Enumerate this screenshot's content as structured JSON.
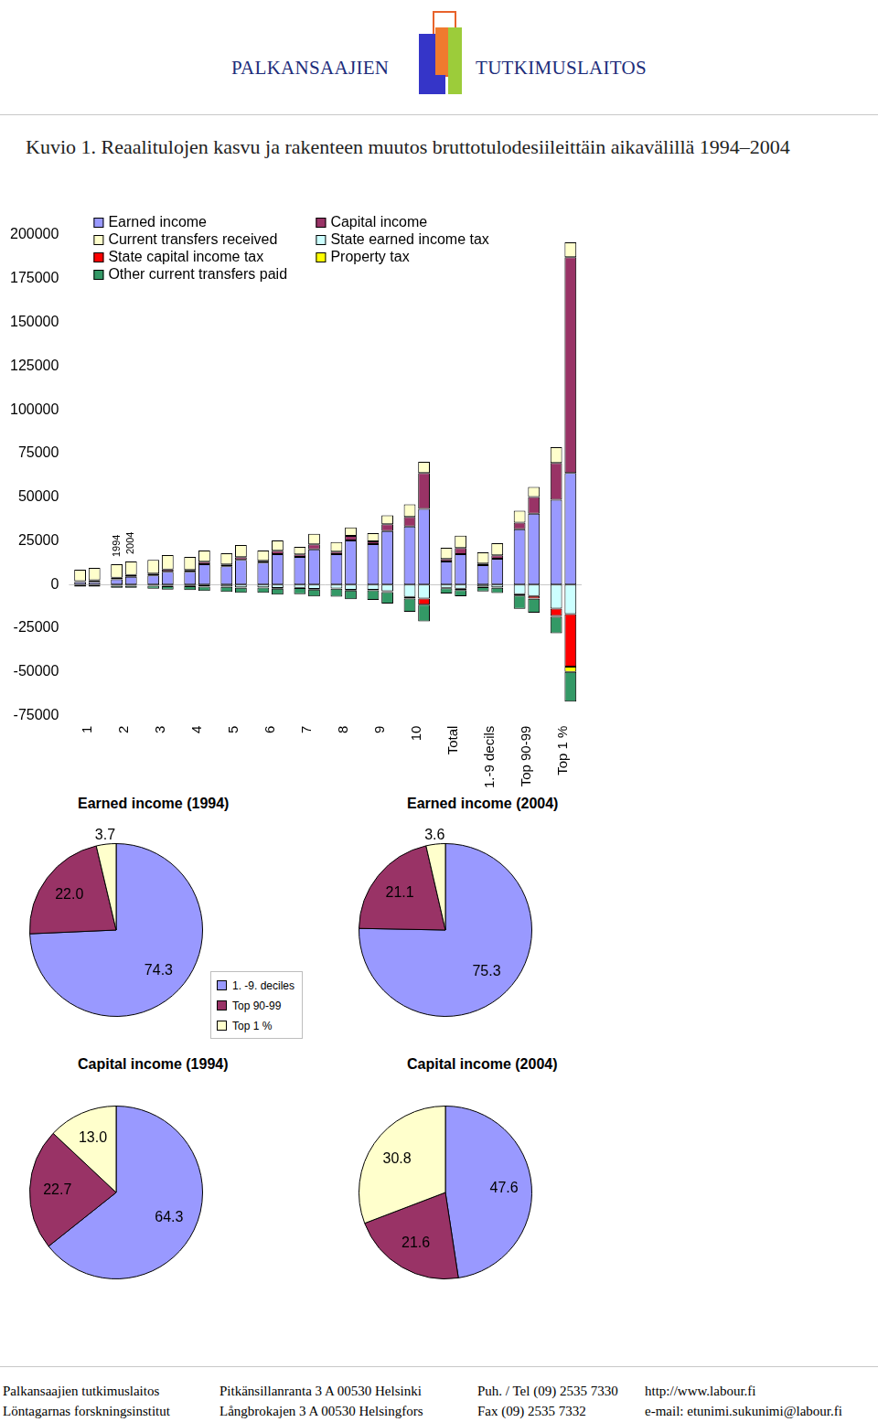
{
  "header": {
    "left": "PALKANSAAJIEN",
    "right": "TUTKIMUSLAITOS"
  },
  "figure_title": "Kuvio 1. Reaalitulojen kasvu ja rakenteen muutos bruttotulodesiileittäin aikavälillä 1994–2004",
  "chart_data": [
    {
      "type": "bar",
      "stacked": true,
      "grid": false,
      "legend": "upper left",
      "categories": [
        "1",
        "2",
        "3",
        "4",
        "5",
        "6",
        "7",
        "8",
        "9",
        "10",
        "Total",
        "1.-9 decils",
        "Top 90-99",
        "Top 1 %"
      ],
      "groups": [
        "1994",
        "2004"
      ],
      "annotations": [
        {
          "text": "1994",
          "category": "2",
          "group": "1994"
        },
        {
          "text": "2004",
          "category": "2",
          "group": "2004"
        }
      ],
      "ylim": [
        -75000,
        200000
      ],
      "yticks": [
        -75000,
        -50000,
        -25000,
        0,
        25000,
        50000,
        75000,
        100000,
        125000,
        150000,
        175000,
        200000
      ],
      "series": [
        {
          "name": "Earned income",
          "color": "#9999ff",
          "values": {
            "1994": [
              1500,
              3000,
              5300,
              7400,
              10500,
              12600,
              15800,
              17400,
              23200,
              33200,
              13200,
              11100,
              31700,
              48500
            ],
            "2004": [
              1500,
              4500,
              7400,
              11600,
              14200,
              17400,
              20100,
              25300,
              30600,
              43300,
              17400,
              14800,
              40600,
              63900
            ]
          }
        },
        {
          "name": "Capital income",
          "color": "#993366",
          "values": {
            "1994": [
              500,
              1000,
              1000,
              1000,
              1000,
              1000,
              1500,
              1500,
              1500,
              5500,
              1500,
              1000,
              3700,
              21100
            ],
            "2004": [
              1000,
              1000,
              1300,
              1500,
              1500,
              2000,
              3000,
              2600,
              4000,
              20600,
              3600,
              2000,
              9500,
              123400
            ]
          }
        },
        {
          "name": "Current transfers received",
          "color": "#ffffcc",
          "values": {
            "1994": [
              6500,
              7600,
              7900,
              7400,
              6400,
              5900,
              4300,
              5400,
              4800,
              7200,
              6400,
              6400,
              6800,
              9000
            ],
            "2004": [
              7000,
              7700,
              8200,
              6400,
              7000,
              5900,
              5900,
              4800,
              5000,
              6300,
              7000,
              6900,
              5800,
              8500
            ]
          }
        },
        {
          "name": "State earned income tax",
          "color": "#ccffff",
          "values": {
            "1994": [
              -300,
              -500,
              -500,
              -800,
              -1200,
              -1500,
              -1800,
              -2200,
              -3000,
              -7000,
              -1800,
              -1200,
              -5500,
              -13700
            ],
            "2004": [
              -300,
              -500,
              -700,
              -1000,
              -1500,
              -2000,
              -2500,
              -3000,
              -3800,
              -8000,
              -2300,
              -1500,
              -6500,
              -16900
            ]
          }
        },
        {
          "name": "State capital income tax",
          "color": "#ff0000",
          "values": {
            "1994": [
              -50,
              -100,
              -100,
              -150,
              -150,
              -200,
              -200,
              -200,
              -300,
              -1000,
              -300,
              -200,
              -700,
              -4200
            ],
            "2004": [
              -100,
              -150,
              -200,
              -200,
              -250,
              -300,
              -300,
              -400,
              -500,
              -3500,
              -800,
              -300,
              -1500,
              -30100
            ]
          }
        },
        {
          "name": "Property tax",
          "color": "#ffff00",
          "values": {
            "1994": [
              0,
              0,
              0,
              0,
              0,
              0,
              0,
              0,
              0,
              0,
              0,
              0,
              -100,
              -500
            ],
            "2004": [
              0,
              0,
              0,
              0,
              0,
              0,
              0,
              0,
              0,
              0,
              0,
              0,
              -100,
              -3000
            ]
          }
        },
        {
          "name": "Other current transfers paid",
          "color": "#339966",
          "values": {
            "1994": [
              -800,
              -1200,
              -1800,
              -2200,
              -2800,
              -3000,
              -3500,
              -4500,
              -5500,
              -7500,
              -3000,
              -2500,
              -7500,
              -9500
            ],
            "2004": [
              -800,
              -1200,
              -2000,
              -2500,
              -3000,
              -3500,
              -4000,
              -5000,
              -6500,
              -9500,
              -3500,
              -3000,
              -8000,
              -16900
            ]
          }
        }
      ]
    },
    {
      "type": "pie",
      "title": "Earned income (1994)",
      "categories": [
        "1. -9. deciles",
        "Top 90-99",
        "Top 1 %"
      ],
      "values": [
        74.3,
        22.0,
        3.7
      ],
      "value_labels": [
        "74.3",
        "22.0",
        "3.7"
      ],
      "colors": [
        "#9999ff",
        "#993366",
        "#ffffcc"
      ],
      "data_labels": true,
      "legend": "right"
    },
    {
      "type": "pie",
      "title": "Earned income (2004)",
      "categories": [
        "1. -9. deciles",
        "Top 90-99",
        "Top 1 %"
      ],
      "values": [
        75.3,
        21.1,
        3.6
      ],
      "value_labels": [
        "75.3",
        "21.1",
        "3.6"
      ],
      "colors": [
        "#9999ff",
        "#993366",
        "#ffffcc"
      ],
      "data_labels": true
    },
    {
      "type": "pie",
      "title": "Capital income (1994)",
      "categories": [
        "1. -9. deciles",
        "Top 90-99",
        "Top 1 %"
      ],
      "values": [
        64.3,
        22.7,
        13.0
      ],
      "value_labels": [
        "64.3",
        "22.7",
        "13.0"
      ],
      "colors": [
        "#9999ff",
        "#993366",
        "#ffffcc"
      ],
      "data_labels": true
    },
    {
      "type": "pie",
      "title": "Capital income (2004)",
      "categories": [
        "1. -9. deciles",
        "Top 90-99",
        "Top 1 %"
      ],
      "values": [
        47.6,
        21.6,
        30.8
      ],
      "value_labels": [
        "47.6",
        "21.6",
        "30.8"
      ],
      "colors": [
        "#9999ff",
        "#993366",
        "#ffffcc"
      ],
      "data_labels": true
    }
  ],
  "footer": {
    "rows": [
      [
        "Palkansaajien tutkimuslaitos",
        "Pitkänsillanranta 3 A 00530 Helsinki",
        "Puh. / Tel (09) 2535 7330",
        "http://www.labour.fi"
      ],
      [
        "Löntagarnas forskningsinstitut",
        "Långbrokajen 3 A 00530 Helsingfors",
        "Fax (09) 2535 7332",
        "e-mail: etunimi.sukunimi@labour.fi"
      ]
    ]
  }
}
